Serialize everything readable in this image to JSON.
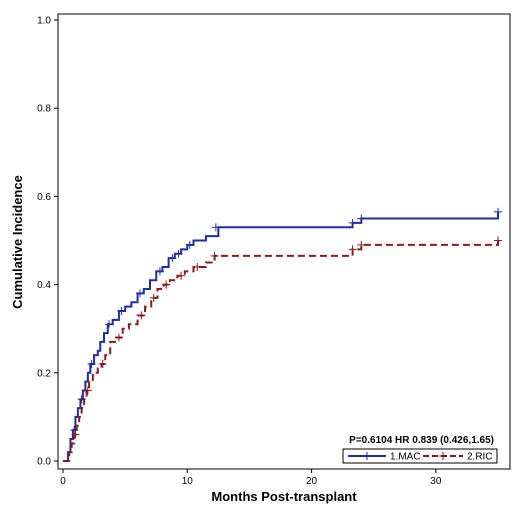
{
  "chart_data": {
    "type": "line",
    "subtype": "step",
    "title": "",
    "xlabel": "Months Post-transplant",
    "ylabel": "Cumulative Incidence",
    "xlim": [
      -0.5,
      35.5
    ],
    "ylim": [
      0,
      1.0
    ],
    "xticks": [
      "0",
      "10",
      "20",
      "30"
    ],
    "xtick_values": [
      0,
      10,
      20,
      30
    ],
    "yticks": [
      "0.0",
      "0.2",
      "0.4",
      "0.6",
      "0.8",
      "1.0"
    ],
    "ytick_values": [
      0.0,
      0.2,
      0.4,
      0.6,
      0.8,
      1.0
    ],
    "grid": false,
    "annotation": "P=0.6104 HR 0.839 (0.426,1.65)",
    "legend_position": "bottom-right",
    "series": [
      {
        "name": "1.MAC",
        "color": "#1f2fa0",
        "line_style": "solid",
        "x": [
          0,
          0.4,
          0.6,
          0.8,
          1.0,
          1.2,
          1.4,
          1.6,
          1.8,
          2.0,
          2.2,
          2.5,
          2.8,
          3.0,
          3.3,
          3.6,
          4.0,
          4.5,
          5.0,
          5.5,
          6.0,
          6.5,
          7.0,
          7.5,
          8.0,
          8.5,
          9.0,
          9.5,
          10.0,
          10.5,
          11.5,
          12.5,
          23.3,
          24.0,
          35.0
        ],
        "y": [
          0.0,
          0.02,
          0.05,
          0.07,
          0.1,
          0.12,
          0.14,
          0.16,
          0.18,
          0.2,
          0.22,
          0.24,
          0.25,
          0.27,
          0.29,
          0.31,
          0.32,
          0.34,
          0.35,
          0.36,
          0.38,
          0.39,
          0.41,
          0.43,
          0.44,
          0.46,
          0.47,
          0.48,
          0.49,
          0.5,
          0.51,
          0.53,
          0.54,
          0.55,
          0.565
        ],
        "censor_x": [
          0.9,
          1.5,
          2.3,
          3.7,
          4.7,
          6.2,
          7.8,
          8.8,
          9.3,
          10.2,
          12.3,
          23.3,
          24.0,
          35.0
        ],
        "censor_y": [
          0.07,
          0.14,
          0.22,
          0.31,
          0.34,
          0.38,
          0.43,
          0.46,
          0.47,
          0.49,
          0.53,
          0.54,
          0.55,
          0.565
        ]
      },
      {
        "name": "2.RIC",
        "color": "#8b1a1a",
        "line_style": "dashed",
        "x": [
          0,
          0.5,
          0.7,
          0.9,
          1.1,
          1.3,
          1.5,
          1.7,
          1.9,
          2.1,
          2.4,
          2.8,
          3.1,
          3.4,
          3.8,
          4.3,
          4.8,
          5.3,
          6.0,
          6.6,
          7.1,
          7.6,
          8.1,
          8.6,
          9.2,
          9.8,
          10.5,
          11.5,
          12.2,
          23.3,
          24.0,
          35.0
        ],
        "y": [
          0.0,
          0.02,
          0.04,
          0.06,
          0.08,
          0.1,
          0.12,
          0.14,
          0.16,
          0.18,
          0.2,
          0.21,
          0.22,
          0.24,
          0.27,
          0.28,
          0.3,
          0.31,
          0.33,
          0.35,
          0.37,
          0.39,
          0.4,
          0.41,
          0.42,
          0.43,
          0.44,
          0.45,
          0.465,
          0.48,
          0.49,
          0.5
        ],
        "censor_x": [
          1.0,
          2.0,
          3.2,
          4.5,
          6.3,
          7.3,
          8.3,
          9.5,
          10.8,
          12.2,
          23.3,
          24.0,
          35.0
        ],
        "censor_y": [
          0.06,
          0.16,
          0.22,
          0.28,
          0.33,
          0.37,
          0.4,
          0.42,
          0.44,
          0.465,
          0.48,
          0.49,
          0.5
        ]
      }
    ]
  }
}
